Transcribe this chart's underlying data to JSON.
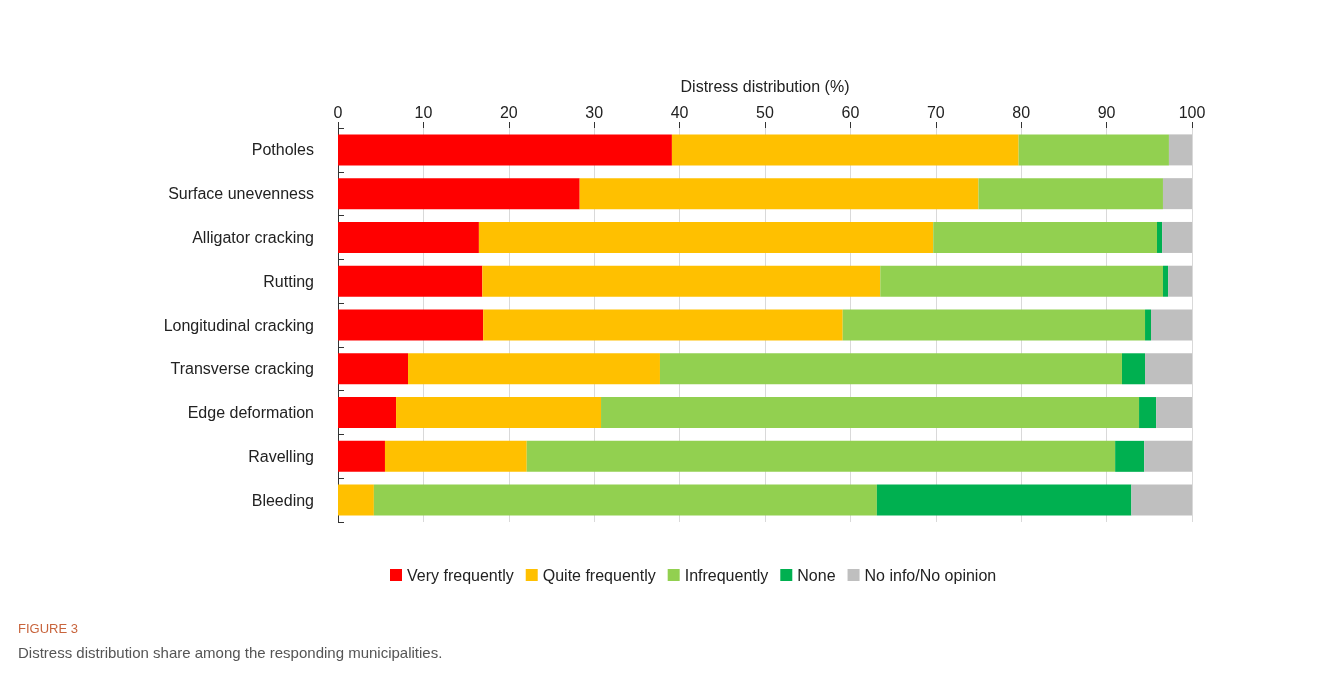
{
  "chart_data": {
    "type": "bar",
    "orientation": "horizontal",
    "stacked": true,
    "xlabel": "Distress distribution (%)",
    "categories": [
      "Potholes",
      "Surface unevenness",
      "Alligator cracking",
      "Rutting",
      "Longitudinal cracking",
      "Transverse cracking",
      "Edge deformation",
      "Ravelling",
      "Bleeding"
    ],
    "series": [
      {
        "name": "Very frequently",
        "color": "#ff0000",
        "values": [
          39.1,
          28.3,
          16.5,
          16.9,
          17.0,
          8.2,
          6.8,
          5.5,
          0
        ]
      },
      {
        "name": "Quite frequently",
        "color": "#ffc000",
        "values": [
          40.6,
          46.7,
          53.2,
          46.6,
          42.1,
          29.5,
          24.0,
          16.6,
          4.2
        ]
      },
      {
        "name": "Infrequently",
        "color": "#92d050",
        "values": [
          17.6,
          21.6,
          26.2,
          33.1,
          35.4,
          54.1,
          63.0,
          68.9,
          58.9
        ]
      },
      {
        "name": "None",
        "color": "#00b050",
        "values": [
          0,
          0,
          0.6,
          0.6,
          0.7,
          2.7,
          2.0,
          3.4,
          29.8
        ]
      },
      {
        "name": "No info/No opinion",
        "color": "#bfbfbf",
        "values": [
          2.7,
          3.4,
          3.5,
          2.8,
          4.8,
          5.5,
          4.2,
          5.6,
          7.1
        ]
      }
    ],
    "xlim": [
      0,
      100
    ],
    "xticks": [
      0,
      10,
      20,
      30,
      40,
      50,
      60,
      70,
      80,
      90,
      100
    ],
    "grid": "x",
    "legend": "bottom",
    "annotations": [
      "FIGURE 3",
      "Distress distribution share among the responding municipalities."
    ]
  }
}
